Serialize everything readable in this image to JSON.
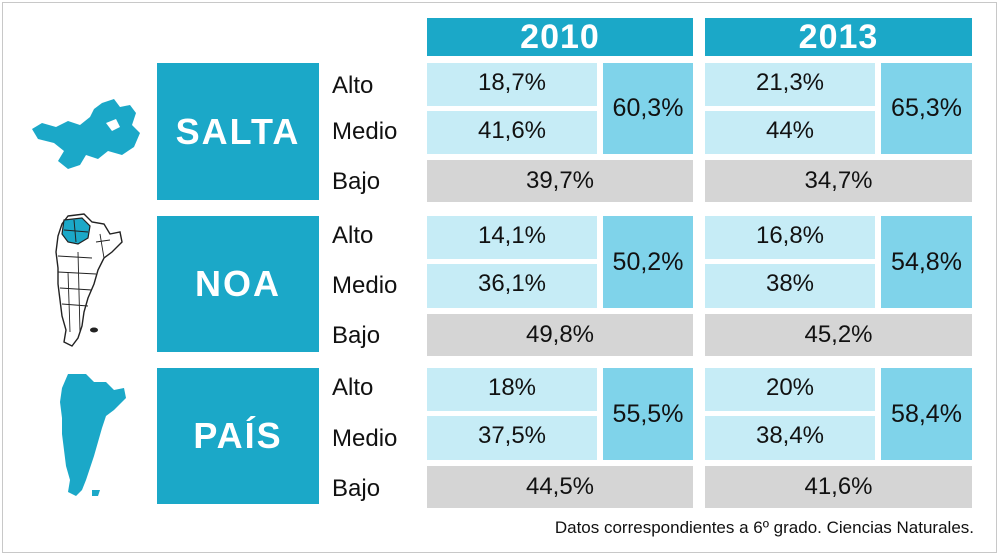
{
  "chart_data": {
    "type": "table",
    "columns": [
      "2010",
      "2013"
    ],
    "colors": {
      "header": "#1ba8c8",
      "region": "#1ba8c8",
      "level_cell": "#c6ecf6",
      "sum_cell": "#7fd3ea",
      "bajo_cell": "#d5d5d5"
    },
    "rows": [
      {
        "region": "SALTA",
        "map_icon": "salta-map-icon",
        "labels": {
          "alto": "Alto",
          "medio": "Medio",
          "bajo": "Bajo"
        },
        "y2010": {
          "alto": "18,7%",
          "medio": "41,6%",
          "alto_medio": "60,3%",
          "bajo": "39,7%"
        },
        "y2013": {
          "alto": "21,3%",
          "medio": "44%",
          "alto_medio": "65,3%",
          "bajo": "34,7%"
        }
      },
      {
        "region": "NOA",
        "map_icon": "argentina-provinces-map-icon",
        "labels": {
          "alto": "Alto",
          "medio": "Medio",
          "bajo": "Bajo"
        },
        "y2010": {
          "alto": "14,1%",
          "medio": "36,1%",
          "alto_medio": "50,2%",
          "bajo": "49,8%"
        },
        "y2013": {
          "alto": "16,8%",
          "medio": "38%",
          "alto_medio": "54,8%",
          "bajo": "45,2%"
        }
      },
      {
        "region": "PAÍS",
        "map_icon": "argentina-map-icon",
        "labels": {
          "alto": "Alto",
          "medio": "Medio",
          "bajo": "Bajo"
        },
        "y2010": {
          "alto": "18%",
          "medio": "37,5%",
          "alto_medio": "55,5%",
          "bajo": "44,5%"
        },
        "y2013": {
          "alto": "20%",
          "medio": "38,4%",
          "alto_medio": "58,4%",
          "bajo": "41,6%"
        }
      }
    ],
    "footnote": "Datos correspondientes a 6º grado. Ciencias Naturales."
  }
}
